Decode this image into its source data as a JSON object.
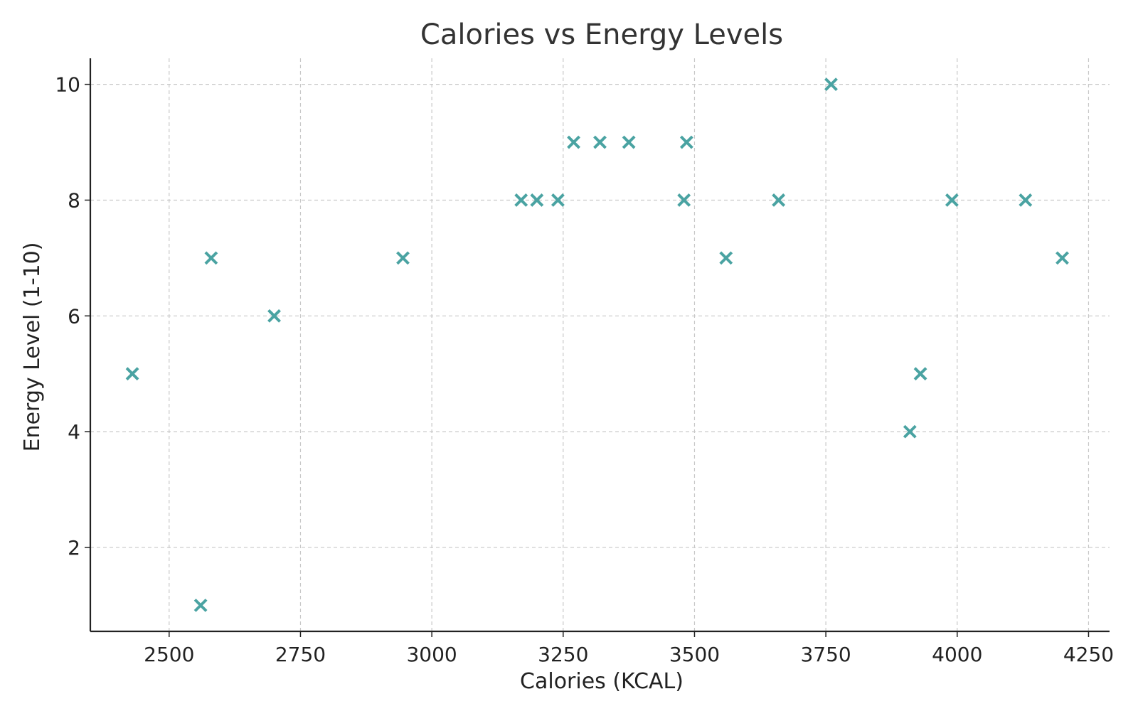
{
  "chart_data": {
    "type": "scatter",
    "title": "Calories vs Energy Levels",
    "xlabel": "Calories (KCAL)",
    "ylabel": "Energy Level (1-10)",
    "xlim": [
      2350,
      4290
    ],
    "ylim": [
      0.55,
      10.45
    ],
    "xticks": [
      2500,
      2750,
      3000,
      3250,
      3500,
      3750,
      4000,
      4250
    ],
    "yticks": [
      2,
      4,
      6,
      8,
      10
    ],
    "grid": true,
    "marker": "x",
    "color": "#4aa3a2",
    "points": [
      {
        "x": 2430,
        "y": 5
      },
      {
        "x": 2560,
        "y": 1
      },
      {
        "x": 2580,
        "y": 7
      },
      {
        "x": 2700,
        "y": 6
      },
      {
        "x": 2945,
        "y": 7
      },
      {
        "x": 3170,
        "y": 8
      },
      {
        "x": 3200,
        "y": 8
      },
      {
        "x": 3240,
        "y": 8
      },
      {
        "x": 3270,
        "y": 9
      },
      {
        "x": 3320,
        "y": 9
      },
      {
        "x": 3375,
        "y": 9
      },
      {
        "x": 3480,
        "y": 8
      },
      {
        "x": 3485,
        "y": 9
      },
      {
        "x": 3560,
        "y": 7
      },
      {
        "x": 3660,
        "y": 8
      },
      {
        "x": 3760,
        "y": 10
      },
      {
        "x": 3910,
        "y": 4
      },
      {
        "x": 3930,
        "y": 5
      },
      {
        "x": 3990,
        "y": 8
      },
      {
        "x": 4130,
        "y": 8
      },
      {
        "x": 4200,
        "y": 7
      }
    ]
  }
}
